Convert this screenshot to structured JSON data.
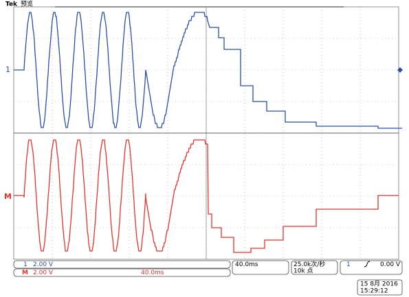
{
  "header": {
    "brand": "Tek",
    "mode": "预览"
  },
  "markers": {
    "channel1": "1",
    "math": "M"
  },
  "readout": {
    "ch1_label": "1",
    "ch1_scale": "2.00 V",
    "math_label": "M",
    "math_scale": "2.00 V",
    "math_time": "40.0ms",
    "timebase": "40.0ms",
    "sample_rate": "25.0k次/秒",
    "record_length": "10k 点",
    "trigger_source": "1",
    "trigger_level": "0.00 V",
    "date": "15 8月  2016",
    "time": "15:29:12"
  }
}
